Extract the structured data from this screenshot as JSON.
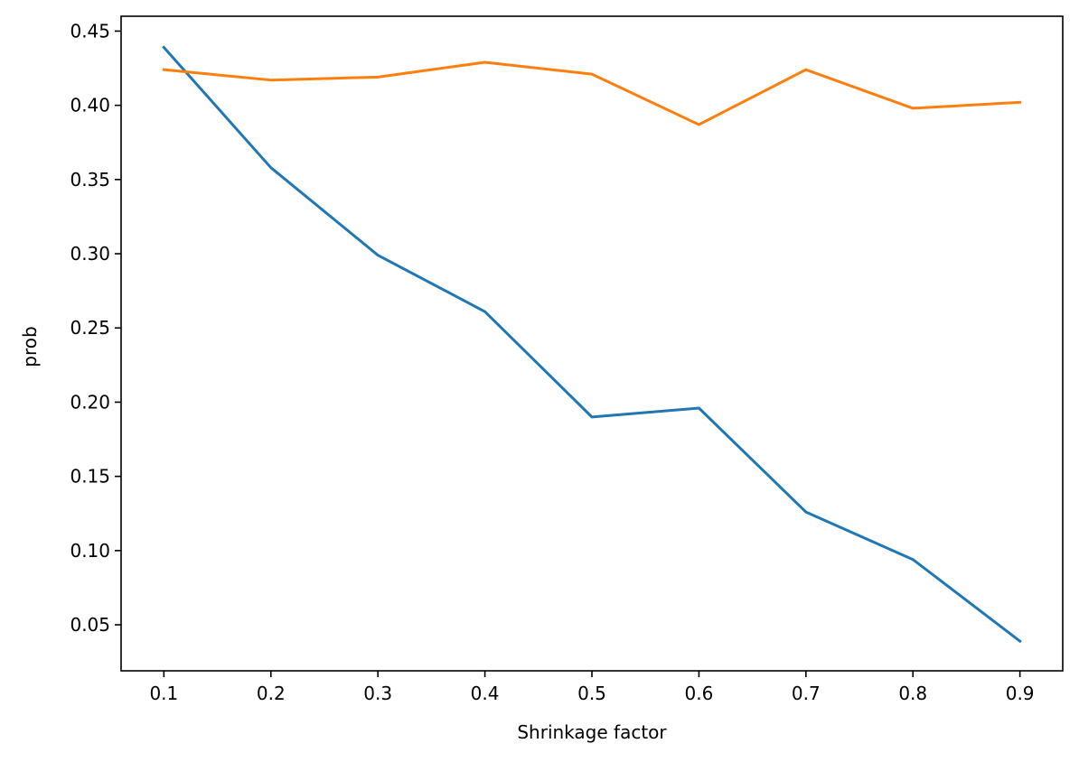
{
  "chart_data": {
    "type": "line",
    "title": "",
    "xlabel": "Shrinkage factor",
    "ylabel": "prob",
    "x": [
      0.1,
      0.2,
      0.3,
      0.4,
      0.5,
      0.6,
      0.7,
      0.8,
      0.9
    ],
    "x_ticks": [
      "0.1",
      "0.2",
      "0.3",
      "0.4",
      "0.5",
      "0.6",
      "0.7",
      "0.8",
      "0.9"
    ],
    "y_ticks": [
      "0.05",
      "0.10",
      "0.15",
      "0.20",
      "0.25",
      "0.30",
      "0.35",
      "0.40",
      "0.45"
    ],
    "xlim": [
      0.06,
      0.94
    ],
    "ylim": [
      0.019,
      0.46
    ],
    "grid": false,
    "legend": "none",
    "series": [
      {
        "color": "#1f77b4",
        "values": [
          0.439,
          0.358,
          0.299,
          0.261,
          0.19,
          0.196,
          0.126,
          0.094,
          0.039
        ]
      },
      {
        "color": "#ff7f0e",
        "values": [
          0.424,
          0.417,
          0.419,
          0.429,
          0.421,
          0.387,
          0.424,
          0.398,
          0.402
        ]
      }
    ]
  }
}
